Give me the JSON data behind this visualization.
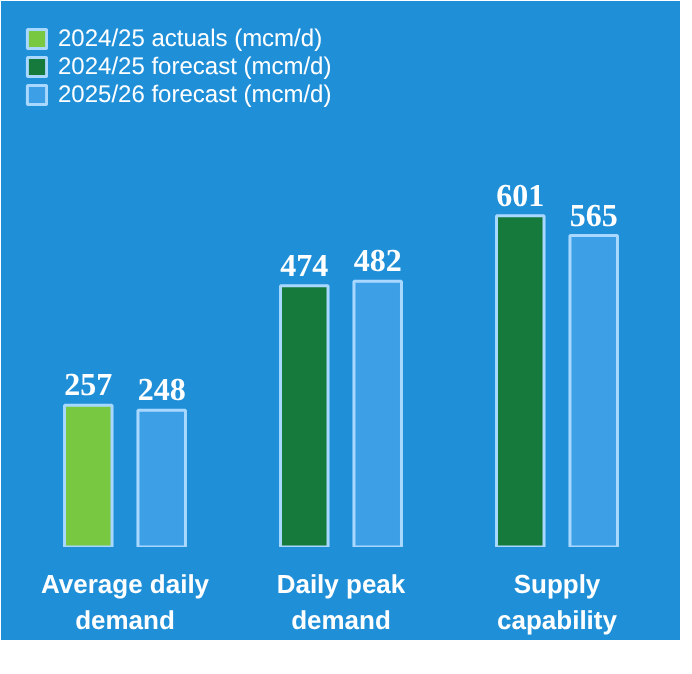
{
  "chart_data": {
    "type": "bar",
    "categories": [
      "Average daily demand",
      "Daily peak demand",
      "Supply capability"
    ],
    "series": [
      {
        "name": "2024/25 actuals (mcm/d)",
        "color": "#78c841",
        "values": [
          257,
          null,
          null
        ]
      },
      {
        "name": "2024/25 forecast (mcm/d)",
        "color": "#167a3c",
        "values": [
          null,
          474,
          601
        ]
      },
      {
        "name": "2025/26 forecast (mcm/d)",
        "color": "#3d9fe6",
        "values": [
          248,
          482,
          565
        ]
      }
    ],
    "data_labels": true,
    "legend": "top left",
    "grid": false
  }
}
